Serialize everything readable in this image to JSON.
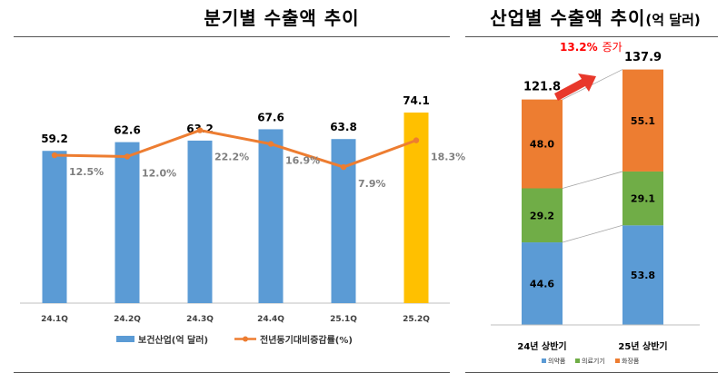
{
  "chart_data": [
    {
      "type": "bar+line",
      "title": "분기별 수출액 추이",
      "categories": [
        "24.1Q",
        "24.2Q",
        "24.3Q",
        "24.4Q",
        "25.1Q",
        "25.2Q"
      ],
      "series": [
        {
          "name": "보건산업(억 달러)",
          "type": "bar",
          "values": [
            59.2,
            62.6,
            63.2,
            67.6,
            63.8,
            74.1
          ],
          "value_labels": [
            "59.2",
            "62.6",
            "63.2",
            "67.6",
            "63.8",
            "74.1"
          ],
          "highlight_index": 5
        },
        {
          "name": "전년동기대비증감률(%)",
          "type": "line",
          "values": [
            12.5,
            12.0,
            22.2,
            16.9,
            7.9,
            18.3
          ],
          "value_labels": [
            "12.5%",
            "12.0%",
            "22.2%",
            "16.9%",
            "7.9%",
            "18.3%"
          ]
        }
      ],
      "bar_ylim": [
        0,
        80
      ],
      "line_ylim": [
        -45,
        35
      ],
      "grid": false,
      "legend": "bottom",
      "colors": {
        "bar": "#5b9bd5",
        "bar_highlight": "#ffc000",
        "line": "#ed7d31",
        "axis_text": "#404040",
        "label_grey": "#7f7f7f"
      }
    },
    {
      "type": "stacked_bar",
      "title": "산업별 수출액 추이",
      "title_suffix": "(억 달러)",
      "categories": [
        "24년 상반기",
        "25년 상반기"
      ],
      "series": [
        {
          "name": "의약품",
          "values": [
            44.6,
            53.8
          ],
          "value_labels": [
            "44.6",
            "53.8"
          ]
        },
        {
          "name": "의료기기",
          "values": [
            29.2,
            29.1
          ],
          "value_labels": [
            "29.2",
            "29.1"
          ]
        },
        {
          "name": "화장품",
          "values": [
            48.0,
            55.1
          ],
          "value_labels": [
            "48.0",
            "55.1"
          ]
        }
      ],
      "totals": [
        121.8,
        137.9
      ],
      "total_labels": [
        "121.8",
        "137.9"
      ],
      "annotation": {
        "highlight": "13.2%",
        "text": "증가"
      },
      "ylim": [
        0,
        140
      ],
      "legend": "bottom",
      "colors": {
        "의약품": "#5b9bd5",
        "의료기기": "#70ad47",
        "화장품": "#ed7d31",
        "annotation": "#ff0000"
      }
    }
  ]
}
